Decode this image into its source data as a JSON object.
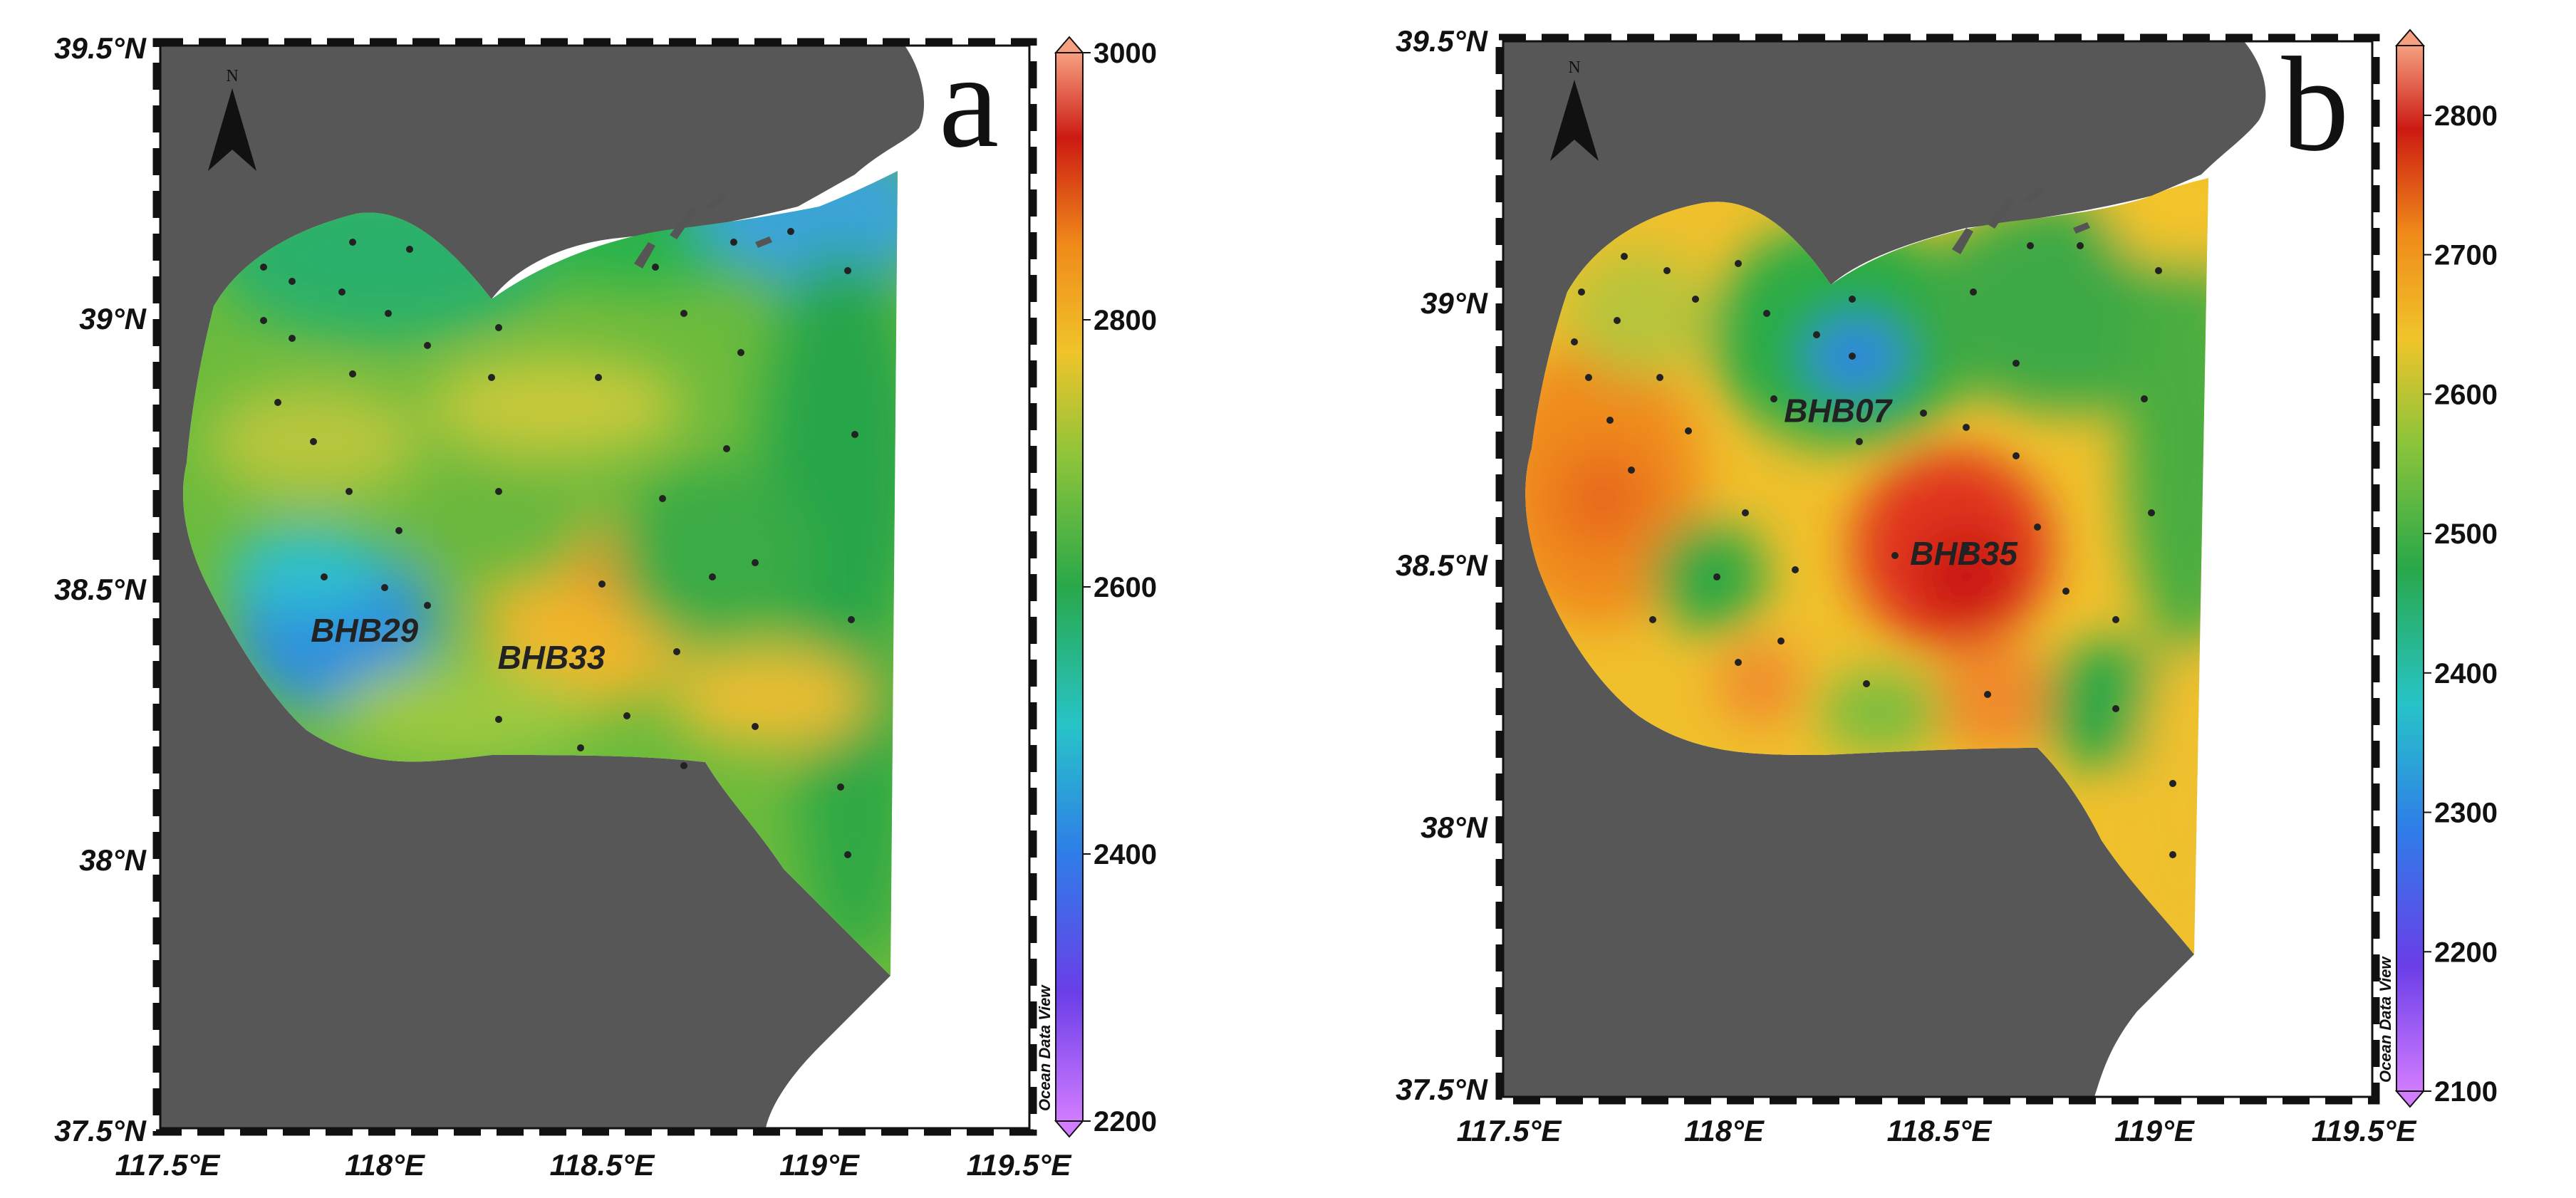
{
  "panels": [
    {
      "label": "a",
      "lat_ticks": [
        "39.5°N",
        "39°N",
        "38.5°N",
        "38°N",
        "37.5°N"
      ],
      "lon_ticks": [
        "117.5°E",
        "118°E",
        "118.5°E",
        "119°E",
        "119.5°E"
      ],
      "colorbar": {
        "ticks": [
          "3000",
          "2800",
          "2600",
          "2400",
          "2200"
        ],
        "min": 2200,
        "max": 3000,
        "credit": "Ocean Data View"
      },
      "stations": [
        {
          "name": "BHB29",
          "lon": 117.97,
          "lat": 38.42
        },
        {
          "name": "BHB33",
          "lon": 118.4,
          "lat": 38.37
        }
      ],
      "north_label": "N"
    },
    {
      "label": "b",
      "lat_ticks": [
        "39.5°N",
        "39°N",
        "38.5°N",
        "38°N",
        "37.5°N"
      ],
      "lon_ticks": [
        "117.5°E",
        "118°E",
        "118.5°E",
        "119°E",
        "119.5°E"
      ],
      "colorbar": {
        "ticks": [
          "2800",
          "2700",
          "2600",
          "2500",
          "2400",
          "2300",
          "2200",
          "2100"
        ],
        "min": 2100,
        "max": 2850,
        "credit": "Ocean Data View"
      },
      "stations": [
        {
          "name": "BHB07",
          "lon": 118.27,
          "lat": 38.8
        },
        {
          "name": "BHB35",
          "lon": 118.56,
          "lat": 38.53
        }
      ],
      "north_label": "N"
    }
  ],
  "colors": {
    "land": "#555555",
    "frame": "#111111",
    "colormap": [
      "#c070ff",
      "#6a3ee8",
      "#2f7de8",
      "#27c4c8",
      "#29a84a",
      "#8cc43a",
      "#f0c42a",
      "#f08a1a",
      "#cc1a12",
      "#f6a080"
    ]
  }
}
